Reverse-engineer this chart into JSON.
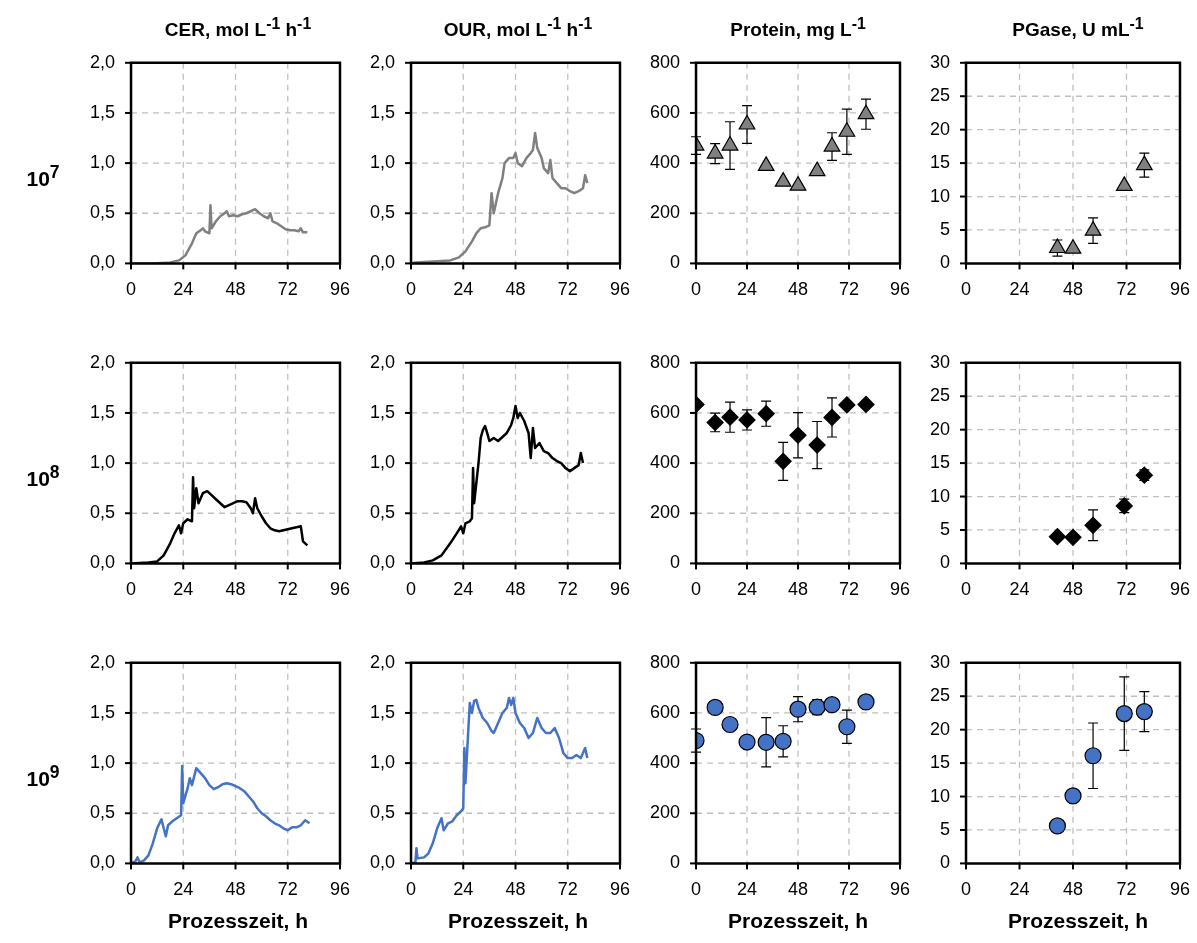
{
  "chart_data": [
    {
      "type": "line",
      "title": "CER, mol L$^{-1}$ h$^{-1}$",
      "ylabel": "10$^{7}$",
      "color": "#808080",
      "marker": "none",
      "grid": true,
      "xlim": [
        0,
        96
      ],
      "xticks": [
        0,
        24,
        48,
        72,
        96
      ],
      "ylim": [
        0,
        2
      ],
      "yticks": [
        {
          "value": 0,
          "label": "0,0"
        },
        {
          "value": 0.5,
          "label": "0,5"
        },
        {
          "value": 1,
          "label": "1,0"
        },
        {
          "value": 1.5,
          "label": "1,5"
        },
        {
          "value": 2,
          "label": "2,0"
        }
      ],
      "x": [
        0,
        10,
        18,
        22,
        25,
        28,
        30,
        32,
        33,
        34,
        36,
        36.5,
        37,
        39,
        41,
        43,
        44,
        45,
        47,
        49,
        51,
        53,
        55,
        57,
        59,
        61,
        63,
        64,
        65,
        67,
        69,
        71,
        73,
        75,
        77,
        78,
        79,
        81
      ],
      "values": [
        0,
        0,
        0.01,
        0.03,
        0.08,
        0.2,
        0.3,
        0.33,
        0.35,
        0.32,
        0.3,
        0.58,
        0.35,
        0.42,
        0.47,
        0.5,
        0.52,
        0.47,
        0.48,
        0.47,
        0.49,
        0.5,
        0.52,
        0.54,
        0.5,
        0.47,
        0.45,
        0.5,
        0.42,
        0.4,
        0.37,
        0.34,
        0.33,
        0.33,
        0.32,
        0.35,
        0.31,
        0.31
      ]
    },
    {
      "type": "line",
      "title": "OUR, mol L$^{-1}$ h$^{-1}$",
      "color": "#808080",
      "marker": "none",
      "grid": true,
      "xlim": [
        0,
        96
      ],
      "xticks": [
        0,
        24,
        48,
        72,
        96
      ],
      "ylim": [
        0,
        2
      ],
      "yticks": [
        {
          "value": 0,
          "label": "0,0"
        },
        {
          "value": 0.5,
          "label": "0,5"
        },
        {
          "value": 1,
          "label": "1,0"
        },
        {
          "value": 1.5,
          "label": "1,5"
        },
        {
          "value": 2,
          "label": "2,0"
        }
      ],
      "x": [
        0,
        2,
        10,
        18,
        22,
        25,
        28,
        30,
        32,
        34,
        36,
        37,
        38,
        40,
        42,
        43,
        45,
        47,
        48,
        49,
        51,
        53,
        55,
        56,
        57,
        58,
        60,
        61,
        63,
        64,
        65,
        67,
        69,
        71,
        73,
        75,
        77,
        79,
        80,
        81
      ],
      "values": [
        0,
        0.01,
        0.02,
        0.03,
        0.06,
        0.12,
        0.22,
        0.3,
        0.35,
        0.36,
        0.38,
        0.7,
        0.5,
        0.7,
        0.85,
        1.0,
        1.05,
        1.05,
        1.1,
        1.0,
        0.97,
        1.05,
        1.1,
        1.13,
        1.3,
        1.15,
        1.05,
        0.95,
        0.9,
        1.03,
        0.85,
        0.8,
        0.75,
        0.75,
        0.72,
        0.7,
        0.72,
        0.75,
        0.88,
        0.8
      ]
    },
    {
      "type": "scatter",
      "title": "Protein, mg L$^{-1}$",
      "color": "#808080",
      "marker": "triangle",
      "grid": true,
      "xlim": [
        0,
        96
      ],
      "xticks": [
        0,
        24,
        48,
        72,
        96
      ],
      "ylim": [
        0,
        800
      ],
      "yticks": [
        0,
        200,
        400,
        600,
        800
      ],
      "x": [
        0,
        9,
        16,
        24,
        33,
        41,
        48,
        57,
        64,
        71,
        80
      ],
      "values": [
        470,
        438,
        470,
        554,
        389,
        326,
        310,
        368,
        466,
        525,
        595
      ],
      "errors": [
        35,
        40,
        95,
        75,
        null,
        null,
        null,
        null,
        55,
        90,
        60
      ]
    },
    {
      "type": "scatter",
      "title": "PGase, U mL$^{-1}$",
      "color": "#808080",
      "marker": "triangle",
      "grid": true,
      "xlim": [
        0,
        96
      ],
      "xticks": [
        0,
        24,
        48,
        72,
        96
      ],
      "ylim": [
        0,
        30
      ],
      "yticks": [
        0,
        5,
        10,
        15,
        20,
        25,
        30
      ],
      "x": [
        41,
        48,
        57,
        71,
        80
      ],
      "values": [
        2.3,
        2.2,
        4.9,
        11.6,
        14.7
      ],
      "errors": [
        1.2,
        null,
        1.9,
        null,
        1.8
      ]
    },
    {
      "type": "line",
      "ylabel": "10$^{8}$",
      "color": "#000000",
      "marker": "none",
      "grid": true,
      "xlim": [
        0,
        96
      ],
      "xticks": [
        0,
        24,
        48,
        72,
        96
      ],
      "ylim": [
        0,
        2
      ],
      "yticks": [
        {
          "value": 0,
          "label": "0,0"
        },
        {
          "value": 0.5,
          "label": "0,5"
        },
        {
          "value": 1,
          "label": "1,0"
        },
        {
          "value": 1.5,
          "label": "1,5"
        },
        {
          "value": 2,
          "label": "2,0"
        }
      ],
      "x": [
        0,
        8,
        12,
        15,
        18,
        20,
        22,
        23,
        24,
        26,
        28,
        28.5,
        29,
        30,
        31,
        33,
        35,
        37,
        39,
        41,
        43,
        45,
        47,
        49,
        51,
        53,
        55,
        56,
        57,
        58,
        60,
        62,
        64,
        66,
        68,
        70,
        72,
        74,
        76,
        78,
        79,
        80,
        81
      ],
      "values": [
        0,
        0.01,
        0.02,
        0.08,
        0.2,
        0.3,
        0.38,
        0.3,
        0.4,
        0.44,
        0.42,
        0.86,
        0.55,
        0.75,
        0.6,
        0.7,
        0.72,
        0.68,
        0.64,
        0.6,
        0.56,
        0.58,
        0.6,
        0.62,
        0.62,
        0.61,
        0.55,
        0.5,
        0.65,
        0.55,
        0.47,
        0.4,
        0.35,
        0.33,
        0.32,
        0.33,
        0.34,
        0.35,
        0.36,
        0.37,
        0.22,
        0.2,
        0.18
      ]
    },
    {
      "type": "line",
      "color": "#000000",
      "marker": "none",
      "grid": true,
      "xlim": [
        0,
        96
      ],
      "xticks": [
        0,
        24,
        48,
        72,
        96
      ],
      "ylim": [
        0,
        2
      ],
      "yticks": [
        {
          "value": 0,
          "label": "0,0"
        },
        {
          "value": 0.5,
          "label": "0,5"
        },
        {
          "value": 1,
          "label": "1,0"
        },
        {
          "value": 1.5,
          "label": "1,5"
        },
        {
          "value": 2,
          "label": "2,0"
        }
      ],
      "x": [
        0,
        6,
        10,
        14,
        18,
        21,
        23,
        24,
        25,
        27,
        28,
        28.5,
        29,
        30,
        31,
        32,
        33,
        34,
        35,
        36,
        38,
        40,
        42,
        44,
        46,
        47,
        48,
        49,
        50,
        52,
        54,
        55,
        56,
        57,
        59,
        61,
        63,
        65,
        67,
        69,
        71,
        73,
        75,
        77,
        78,
        79
      ],
      "values": [
        0,
        0.01,
        0.03,
        0.08,
        0.2,
        0.3,
        0.37,
        0.3,
        0.4,
        0.42,
        0.45,
        0.95,
        0.6,
        0.8,
        1.0,
        1.25,
        1.33,
        1.37,
        1.3,
        1.22,
        1.25,
        1.22,
        1.26,
        1.3,
        1.38,
        1.45,
        1.57,
        1.45,
        1.5,
        1.42,
        1.3,
        1.05,
        1.35,
        1.15,
        1.2,
        1.12,
        1.1,
        1.05,
        1.02,
        1.0,
        0.95,
        0.92,
        0.95,
        0.98,
        1.1,
        1.0
      ]
    },
    {
      "type": "scatter",
      "color": "#000000",
      "marker": "diamond",
      "grid": true,
      "xlim": [
        0,
        96
      ],
      "xticks": [
        0,
        24,
        48,
        72,
        96
      ],
      "ylim": [
        0,
        800
      ],
      "yticks": [
        0,
        200,
        400,
        600,
        800
      ],
      "x": [
        0,
        9,
        16,
        24,
        33,
        41,
        48,
        57,
        64,
        71,
        80
      ],
      "values": [
        634,
        562,
        583,
        572,
        597,
        407,
        511,
        472,
        582,
        632,
        634
      ],
      "errors": [
        null,
        37,
        60,
        40,
        50,
        76,
        90,
        94,
        78,
        null,
        null
      ]
    },
    {
      "type": "scatter",
      "color": "#000000",
      "marker": "diamond",
      "grid": true,
      "xlim": [
        0,
        96
      ],
      "xticks": [
        0,
        24,
        48,
        72,
        96
      ],
      "ylim": [
        0,
        30
      ],
      "yticks": [
        0,
        5,
        10,
        15,
        20,
        25,
        30
      ],
      "x": [
        41,
        48,
        57,
        71,
        80
      ],
      "values": [
        4.0,
        3.9,
        5.7,
        8.6,
        13.2
      ],
      "errors": [
        null,
        null,
        2.3,
        1.0,
        0.8
      ]
    },
    {
      "type": "line",
      "ylabel": "10$^{9}$",
      "xlabel": "Prozesszeit, h",
      "color": "#4472c4",
      "marker": "none",
      "grid": true,
      "xlim": [
        0,
        96
      ],
      "xticks": [
        0,
        24,
        48,
        72,
        96
      ],
      "ylim": [
        0,
        2
      ],
      "yticks": [
        {
          "value": 0,
          "label": "0,0"
        },
        {
          "value": 0.5,
          "label": "0,5"
        },
        {
          "value": 1,
          "label": "1,0"
        },
        {
          "value": 1.5,
          "label": "1,5"
        },
        {
          "value": 2,
          "label": "2,0"
        }
      ],
      "x": [
        0,
        2,
        3,
        4,
        6,
        8,
        10,
        12,
        14,
        15,
        16,
        17,
        19,
        21,
        23,
        23.5,
        24,
        26,
        27,
        28,
        30,
        32,
        34,
        36,
        38,
        40,
        42,
        44,
        46,
        48,
        50,
        52,
        54,
        56,
        58,
        60,
        62,
        64,
        66,
        68,
        70,
        72,
        74,
        76,
        78,
        80,
        82
      ],
      "values": [
        0,
        0.02,
        0.06,
        0.01,
        0.03,
        0.08,
        0.2,
        0.35,
        0.44,
        0.35,
        0.27,
        0.38,
        0.42,
        0.45,
        0.48,
        0.97,
        0.6,
        0.75,
        0.85,
        0.78,
        0.95,
        0.9,
        0.85,
        0.78,
        0.74,
        0.76,
        0.79,
        0.8,
        0.79,
        0.77,
        0.75,
        0.72,
        0.67,
        0.62,
        0.55,
        0.5,
        0.47,
        0.43,
        0.4,
        0.38,
        0.35,
        0.33,
        0.36,
        0.36,
        0.38,
        0.43,
        0.4
      ]
    },
    {
      "type": "line",
      "xlabel": "Prozesszeit, h",
      "color": "#4472c4",
      "marker": "none",
      "grid": true,
      "xlim": [
        0,
        96
      ],
      "xticks": [
        0,
        24,
        48,
        72,
        96
      ],
      "ylim": [
        0,
        2
      ],
      "yticks": [
        {
          "value": 0,
          "label": "0,0"
        },
        {
          "value": 0.5,
          "label": "0,5"
        },
        {
          "value": 1,
          "label": "1,0"
        },
        {
          "value": 1.5,
          "label": "1,5"
        },
        {
          "value": 2,
          "label": "2,0"
        }
      ],
      "x": [
        0,
        2,
        2.5,
        3,
        6,
        8,
        10,
        12,
        14,
        15,
        17,
        19,
        21,
        23,
        24,
        24.5,
        25,
        26,
        27,
        28,
        29,
        30,
        31,
        33,
        35,
        37,
        38,
        40,
        42,
        44,
        45,
        46,
        47,
        48,
        50,
        52,
        54,
        56,
        58,
        60,
        62,
        64,
        66,
        68,
        70,
        72,
        74,
        76,
        78,
        80,
        81
      ],
      "values": [
        0,
        0.01,
        0.15,
        0.05,
        0.06,
        0.1,
        0.2,
        0.35,
        0.45,
        0.33,
        0.4,
        0.42,
        0.48,
        0.52,
        0.55,
        1.15,
        0.8,
        1.2,
        1.6,
        1.5,
        1.62,
        1.63,
        1.55,
        1.45,
        1.4,
        1.32,
        1.3,
        1.4,
        1.5,
        1.55,
        1.65,
        1.58,
        1.65,
        1.5,
        1.4,
        1.35,
        1.25,
        1.3,
        1.45,
        1.35,
        1.3,
        1.3,
        1.35,
        1.25,
        1.1,
        1.05,
        1.05,
        1.08,
        1.05,
        1.15,
        1.05
      ]
    },
    {
      "type": "scatter",
      "xlabel": "Prozesszeit, h",
      "color": "#4472c4",
      "marker": "circle",
      "grid": true,
      "xlim": [
        0,
        96
      ],
      "xticks": [
        0,
        24,
        48,
        72,
        96
      ],
      "ylim": [
        0,
        800
      ],
      "yticks": [
        0,
        200,
        400,
        600,
        800
      ],
      "x": [
        0,
        9,
        16,
        24,
        33,
        41,
        48,
        57,
        64,
        71,
        80
      ],
      "values": [
        490,
        622,
        554,
        484,
        483,
        487,
        615,
        623,
        633,
        545,
        644
      ],
      "errors": [
        46,
        null,
        null,
        null,
        98,
        62,
        50,
        30,
        null,
        66,
        null
      ]
    },
    {
      "type": "scatter",
      "xlabel": "Prozesszeit, h",
      "color": "#4472c4",
      "marker": "circle",
      "grid": true,
      "xlim": [
        0,
        96
      ],
      "xticks": [
        0,
        24,
        48,
        72,
        96
      ],
      "ylim": [
        0,
        30
      ],
      "yticks": [
        0,
        5,
        10,
        15,
        20,
        25,
        30
      ],
      "x": [
        41,
        48,
        57,
        71,
        80
      ],
      "values": [
        5.6,
        10.1,
        16.1,
        22.4,
        22.7
      ],
      "errors": [
        null,
        null,
        4.9,
        5.5,
        3.0
      ]
    }
  ]
}
